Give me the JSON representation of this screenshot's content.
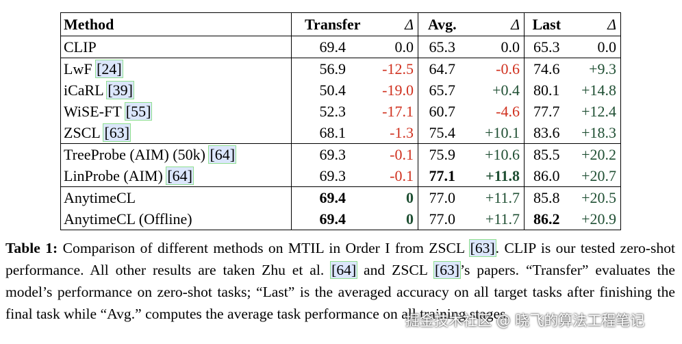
{
  "table": {
    "header": [
      "Method",
      "Transfer",
      "Δ",
      "Avg.",
      "Δ",
      "Last",
      "Δ"
    ],
    "groups": [
      [
        {
          "method": "CLIP",
          "cells": [
            "69.4",
            "0.0",
            "65.3",
            "0.0",
            "65.3",
            "0.0"
          ]
        }
      ],
      [
        {
          "method": "LwF",
          "cite": "[24]",
          "cells": [
            "56.9",
            "-12.5",
            "64.7",
            "-0.6",
            "74.6",
            "+9.3"
          ]
        },
        {
          "method": "iCaRL",
          "cite": "[39]",
          "cells": [
            "50.4",
            "-19.0",
            "65.7",
            "+0.4",
            "80.1",
            "+14.8"
          ]
        },
        {
          "method": "WiSE-FT",
          "cite": "[55]",
          "cells": [
            "52.3",
            "-17.1",
            "60.7",
            "-4.6",
            "77.7",
            "+12.4"
          ]
        },
        {
          "method": "ZSCL",
          "cite": "[63]",
          "cells": [
            "68.1",
            "-1.3",
            "75.4",
            "+10.1",
            "83.6",
            "+18.3"
          ]
        }
      ],
      [
        {
          "method": "TreeProbe (AIM) (50k)",
          "cite": "[64]",
          "cells": [
            "69.3",
            "-0.1",
            "75.9",
            "+10.6",
            "85.5",
            "+20.2"
          ]
        },
        {
          "method": "LinProbe (AIM)",
          "cite": "[64]",
          "cells": [
            "69.3",
            "-0.1",
            "77.1",
            "+11.8",
            "86.0",
            "+20.7"
          ],
          "bold": [
            2,
            3
          ]
        }
      ],
      [
        {
          "method": "AnytimeCL",
          "cells": [
            "69.4",
            "0",
            "77.0",
            "+11.7",
            "85.8",
            "+20.5"
          ],
          "bold": [
            0,
            1
          ]
        },
        {
          "method": "AnytimeCL (Offline)",
          "cells": [
            "69.4",
            "0",
            "77.0",
            "+11.7",
            "86.2",
            "+20.9"
          ],
          "bold": [
            0,
            1,
            4
          ]
        }
      ]
    ]
  },
  "caption": {
    "label": "Table 1:",
    "parts": [
      {
        "text": " Comparison of different methods on MTIL in Order I from ZSCL "
      },
      {
        "cite": "[63]"
      },
      {
        "text": ". CLIP is our tested zero-shot performance. All other results are taken Zhu et al. "
      },
      {
        "cite": "[64]"
      },
      {
        "text": " and ZSCL "
      },
      {
        "cite": "[63]"
      },
      {
        "text": "’s papers. “Transfer” evaluates the model’s performance on zero-shot tasks; “Last” is the averaged accuracy on all target tasks after finishing the final task while “Avg.” computes the average task performance on all training stages."
      }
    ]
  },
  "watermark": "掘金技术社区 @ 晓飞的算法工程笔记"
}
